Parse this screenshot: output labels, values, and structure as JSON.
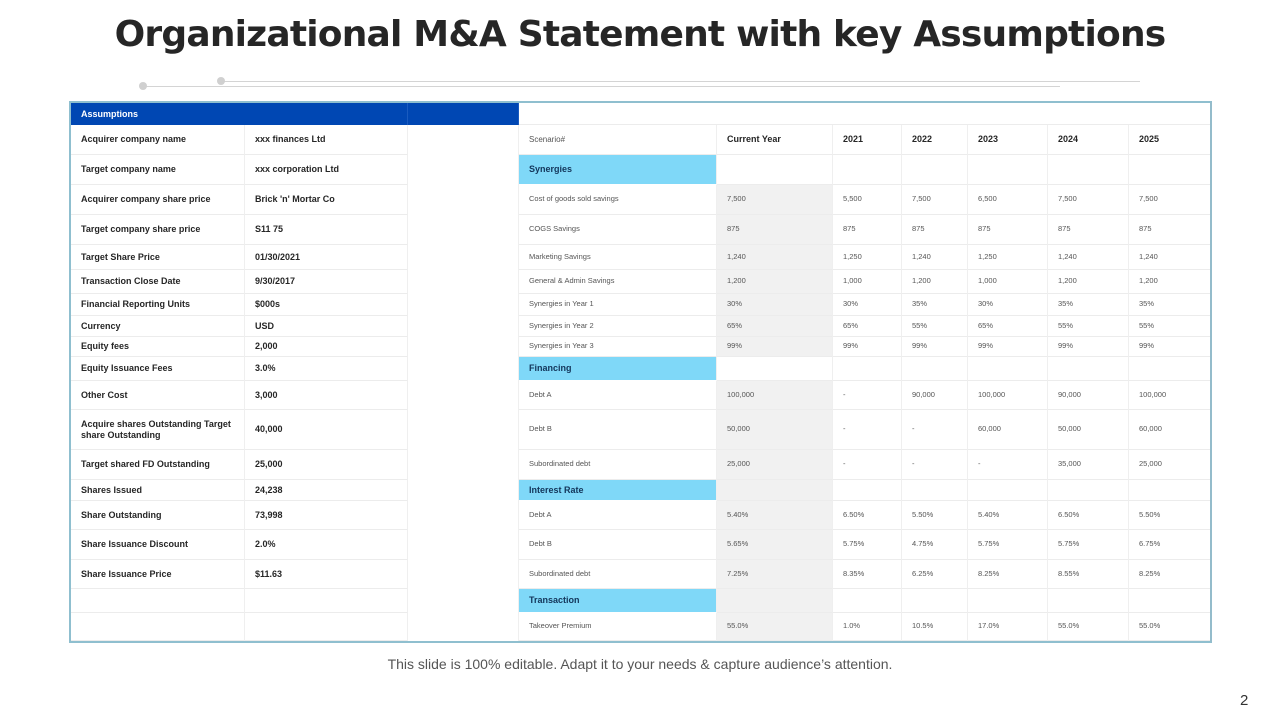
{
  "title": "Organizational M&A Statement with key Assumptions",
  "footer": "This slide is 100% editable. Adapt it to your needs & capture audience’s attention.",
  "page_number": "2",
  "colors": {
    "assumptions_header": "#0047b3",
    "section_header": "#7fd8f8",
    "current_year_column": "#f1f1f1",
    "frame_border": "#8fbfcf"
  },
  "assumptions": {
    "header": "Assumptions",
    "rows": [
      {
        "label": "Acquirer company name",
        "value": "xxx finances Ltd"
      },
      {
        "label": "Target company name",
        "value": "xxx corporation Ltd"
      },
      {
        "label": "Acquirer company share price",
        "value": "Brick 'n' Mortar Co"
      },
      {
        "label": "Target company share price",
        "value": "S11 75"
      },
      {
        "label": "Target Share Price",
        "value": "01/30/2021"
      },
      {
        "label": "Transaction Close Date",
        "value": "9/30/2017"
      },
      {
        "label": "Financial Reporting Units",
        "value": "$000s"
      },
      {
        "label": "Currency",
        "value": "USD"
      },
      {
        "label": "Equity fees",
        "value": "2,000"
      },
      {
        "label": "Equity Issuance Fees",
        "value": "3.0%"
      },
      {
        "label": "Other Cost",
        "value": "3,000"
      },
      {
        "label": "Acquire shares Outstanding Target share Outstanding",
        "value": "40,000"
      },
      {
        "label": "Target shared FD Outstanding",
        "value": "25,000"
      },
      {
        "label": "Shares Issued",
        "value": "24,238"
      },
      {
        "label": "Share Outstanding",
        "value": "73,998"
      },
      {
        "label": "Share Issuance Discount",
        "value": "2.0%"
      },
      {
        "label": "Share Issuance Price",
        "value": "$11.63"
      },
      {
        "label": "",
        "value": ""
      },
      {
        "label": "",
        "value": ""
      }
    ]
  },
  "scenario": {
    "header_label": "Scenario#",
    "columns": [
      "Current Year",
      "2021",
      "2022",
      "2023",
      "2024",
      "2025"
    ],
    "rows": [
      {
        "type": "section",
        "label": "Synergies"
      },
      {
        "type": "data",
        "label": "Cost of goods  sold savings",
        "values": [
          "7,500",
          "5,500",
          "7,500",
          "6,500",
          "7,500",
          "7,500"
        ]
      },
      {
        "type": "data",
        "label": "COGS Savings",
        "values": [
          "875",
          "875",
          "875",
          "875",
          "875",
          "875"
        ]
      },
      {
        "type": "data",
        "label": "Marketing Savings",
        "values": [
          "1,240",
          "1,250",
          "1,240",
          "1,250",
          "1,240",
          "1,240"
        ]
      },
      {
        "type": "data",
        "label": "General  & Admin Savings",
        "values": [
          "1,200",
          "1,000",
          "1,200",
          "1,000",
          "1,200",
          "1,200"
        ]
      },
      {
        "type": "data",
        "label": "Synergies  in Year  1",
        "values": [
          "30%",
          "30%",
          "35%",
          "30%",
          "35%",
          "35%"
        ]
      },
      {
        "type": "data",
        "label": "Synergies  in Year  2",
        "values": [
          "65%",
          "65%",
          "55%",
          "65%",
          "55%",
          "55%"
        ]
      },
      {
        "type": "data",
        "label": "Synergies  in Year  3",
        "values": [
          "99%",
          "99%",
          "99%",
          "99%",
          "99%",
          "99%"
        ]
      },
      {
        "type": "section",
        "label": "Financing"
      },
      {
        "type": "data",
        "label": "Debt A",
        "values": [
          "100,000",
          "-",
          "90,000",
          "100,000",
          "90,000",
          "100,000"
        ]
      },
      {
        "type": "data",
        "label": "Debt B",
        "values": [
          "50,000",
          "-",
          "-",
          "60,000",
          "50,000",
          "60,000"
        ]
      },
      {
        "type": "data",
        "label": "Subordinated  debt",
        "values": [
          "25,000",
          "-",
          "-",
          "-",
          "35,000",
          "25,000"
        ]
      },
      {
        "type": "section",
        "label": "Interest Rate"
      },
      {
        "type": "data",
        "label": "Debt A",
        "values": [
          "5.40%",
          "6.50%",
          "5.50%",
          "5.40%",
          "6.50%",
          "5.50%"
        ]
      },
      {
        "type": "data",
        "label": "Debt B",
        "values": [
          "5.65%",
          "5.75%",
          "4.75%",
          "5.75%",
          "5.75%",
          "6.75%"
        ]
      },
      {
        "type": "data",
        "label": "Subordinated  debt",
        "values": [
          "7.25%",
          "8.35%",
          "6.25%",
          "8.25%",
          "8.55%",
          "8.25%"
        ]
      },
      {
        "type": "section",
        "label": "Transaction"
      },
      {
        "type": "data",
        "label": "Takeover  Premium",
        "values": [
          "55.0%",
          "1.0%",
          "10.5%",
          "17.0%",
          "55.0%",
          "55.0%"
        ]
      }
    ]
  }
}
